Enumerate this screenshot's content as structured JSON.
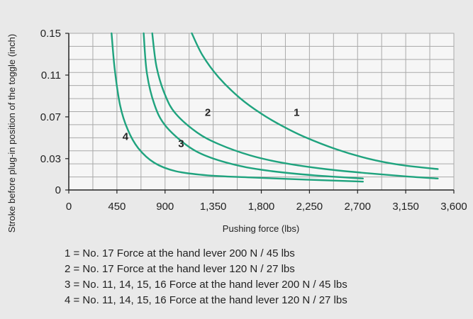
{
  "chart_data": {
    "type": "line",
    "title": "",
    "xlabel": "Pushing force (lbs)",
    "ylabel": "Stroke before plug-in position of the toggle (inch)",
    "xlim": [
      0,
      3600
    ],
    "ylim": [
      0,
      0.15
    ],
    "x_ticks": [
      0,
      450,
      900,
      1350,
      1800,
      2250,
      2700,
      3150,
      3600
    ],
    "x_tick_labels": [
      "0",
      "450",
      "900",
      "1,350",
      "1,800",
      "2,250",
      "2,700",
      "3,150",
      "3,600"
    ],
    "y_ticks": [
      0,
      0.03,
      0.07,
      0.11,
      0.15
    ],
    "y_tick_labels": [
      "0",
      "0.03",
      "0.07",
      "0.11",
      "0.15"
    ],
    "x_grid_step": 225,
    "y_grid_step": 0.0125,
    "grid": true,
    "line_color": "#1fa37e",
    "series": [
      {
        "name": "1",
        "x": [
          1150,
          1250,
          1400,
          1600,
          1800,
          2000,
          2200,
          2500,
          2800,
          3100,
          3450
        ],
        "y": [
          0.15,
          0.129,
          0.108,
          0.088,
          0.073,
          0.061,
          0.051,
          0.039,
          0.03,
          0.024,
          0.02
        ]
      },
      {
        "name": "2",
        "x": [
          780,
          820,
          900,
          1000,
          1200,
          1400,
          1700,
          2000,
          2400,
          2800,
          3150,
          3450
        ],
        "y": [
          0.15,
          0.118,
          0.091,
          0.073,
          0.055,
          0.044,
          0.033,
          0.026,
          0.02,
          0.016,
          0.013,
          0.011
        ]
      },
      {
        "name": "3",
        "x": [
          700,
          730,
          800,
          900,
          1100,
          1300,
          1600,
          1900,
          2300,
          2750
        ],
        "y": [
          0.15,
          0.112,
          0.082,
          0.062,
          0.043,
          0.032,
          0.023,
          0.018,
          0.014,
          0.011
        ]
      },
      {
        "name": "4",
        "x": [
          400,
          430,
          480,
          550,
          650,
          800,
          1000,
          1300,
          1700,
          2200,
          2750
        ],
        "y": [
          0.15,
          0.115,
          0.081,
          0.058,
          0.04,
          0.026,
          0.018,
          0.014,
          0.012,
          0.01,
          0.008
        ]
      }
    ],
    "curve_labels": [
      {
        "text": "1",
        "x": 2130,
        "y": 0.071
      },
      {
        "text": "2",
        "x": 1300,
        "y": 0.071
      },
      {
        "text": "3",
        "x": 1050,
        "y": 0.041
      },
      {
        "text": "4",
        "x": 530,
        "y": 0.048
      }
    ],
    "legend": {
      "placement": "bottom",
      "items": [
        "1 = No. 17 Force at the hand lever 200 N / 45 lbs",
        "2 = No. 17 Force at the hand lever 120 N / 27 lbs",
        "3 = No. 11, 14, 15, 16 Force at the hand lever 200 N / 45 lbs",
        "4 = No. 11, 14, 15, 16 Force at the hand lever 120 N / 27 lbs"
      ]
    }
  }
}
